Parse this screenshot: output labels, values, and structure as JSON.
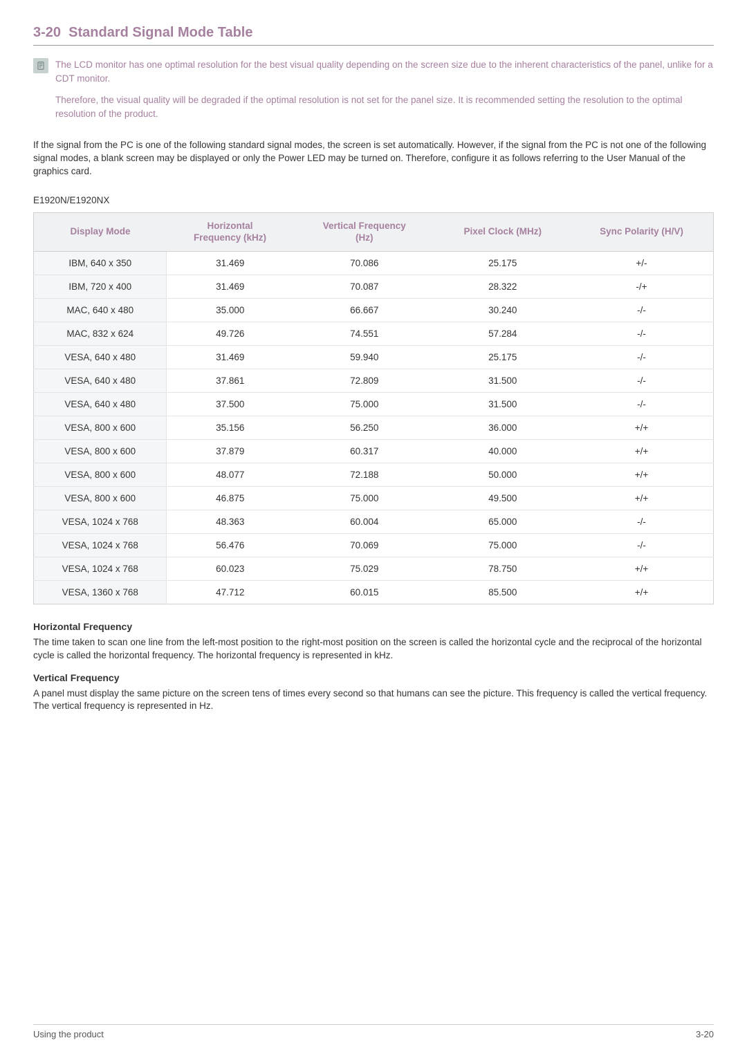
{
  "section": {
    "number": "3-20",
    "title": "Standard Signal Mode Table"
  },
  "note": {
    "p1": "The LCD monitor has one optimal resolution for the best visual quality depending on the screen size due to the inherent characteristics of the panel, unlike for a CDT monitor.",
    "p2": "Therefore, the visual quality will be degraded if the optimal resolution is not set for the panel size. It is recommended setting the resolution to the optimal resolution of the product."
  },
  "intro": "If the signal from the PC is one of the following standard signal modes, the screen is set automatically. However, if the signal from the PC is not one of the following signal modes, a blank screen may be displayed or only the Power LED may be turned on. Therefore, configure it as follows referring to the User Manual of the graphics card.",
  "model": "E1920N/E1920NX",
  "table": {
    "columns": [
      "Display Mode",
      "Horizontal Frequency (kHz)",
      "Vertical Frequency (Hz)",
      "Pixel Clock (MHz)",
      "Sync Polarity (H/V)"
    ],
    "h0": "Display Mode",
    "h1a": "Horizontal",
    "h1b": "Frequency (kHz)",
    "h2a": "Vertical Frequency",
    "h2b": "(Hz)",
    "h3": "Pixel Clock (MHz)",
    "h4": "Sync Polarity (H/V)",
    "header_color": "#a6809f",
    "header_bg": "#f0f1f3",
    "firstcol_bg": "#f5f6f7",
    "border_color": "#d0d0d0",
    "rows": [
      [
        "IBM, 640 x 350",
        "31.469",
        "70.086",
        "25.175",
        "+/-"
      ],
      [
        "IBM, 720 x 400",
        "31.469",
        "70.087",
        "28.322",
        "-/+"
      ],
      [
        "MAC, 640 x 480",
        "35.000",
        "66.667",
        "30.240",
        "-/-"
      ],
      [
        "MAC, 832 x 624",
        "49.726",
        "74.551",
        "57.284",
        "-/-"
      ],
      [
        "VESA, 640 x 480",
        "31.469",
        "59.940",
        "25.175",
        "-/-"
      ],
      [
        "VESA, 640 x 480",
        "37.861",
        "72.809",
        "31.500",
        "-/-"
      ],
      [
        "VESA, 640 x 480",
        "37.500",
        "75.000",
        "31.500",
        "-/-"
      ],
      [
        "VESA, 800 x 600",
        "35.156",
        "56.250",
        "36.000",
        "+/+"
      ],
      [
        "VESA, 800 x 600",
        "37.879",
        "60.317",
        "40.000",
        "+/+"
      ],
      [
        "VESA, 800 x 600",
        "48.077",
        "72.188",
        "50.000",
        "+/+"
      ],
      [
        "VESA, 800 x 600",
        "46.875",
        "75.000",
        "49.500",
        "+/+"
      ],
      [
        "VESA, 1024 x 768",
        "48.363",
        "60.004",
        "65.000",
        "-/-"
      ],
      [
        "VESA, 1024 x 768",
        "56.476",
        "70.069",
        "75.000",
        "-/-"
      ],
      [
        "VESA, 1024 x 768",
        "60.023",
        "75.029",
        "78.750",
        "+/+"
      ],
      [
        "VESA, 1360 x 768",
        "47.712",
        "60.015",
        "85.500",
        "+/+"
      ]
    ]
  },
  "defs": {
    "hf_title": "Horizontal Frequency",
    "hf_text": "The time taken to scan one line from the left-most position to the right-most position on the screen is called the horizontal cycle and the reciprocal of the horizontal cycle is called the horizontal frequency. The horizontal frequency is represented in kHz.",
    "vf_title": "Vertical Frequency",
    "vf_text": "A panel must display the same picture on the screen tens of times every second so that humans can see the picture. This frequency is called the vertical frequency. The vertical frequency is represented in Hz."
  },
  "footer": {
    "left": "Using the product",
    "right": "3-20"
  },
  "colors": {
    "accent": "#a6809f",
    "icon_bg": "#c6d1d0"
  }
}
